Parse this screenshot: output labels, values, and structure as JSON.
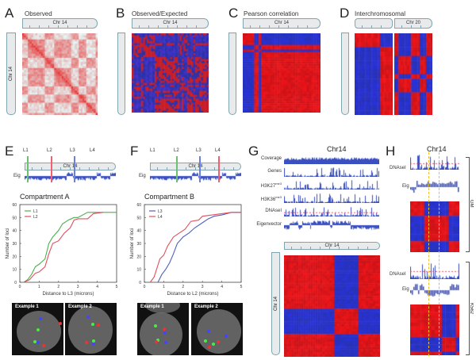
{
  "panels": {
    "A": {
      "label": "A",
      "title": "Observed",
      "chr_h": "Chr 14",
      "chr_v": "Chr 14"
    },
    "B": {
      "label": "B",
      "title": "Observed/Expected",
      "chr_h": "Chr 14"
    },
    "C": {
      "label": "C",
      "title": "Pearson correlation",
      "chr_h": "Chr 14"
    },
    "D": {
      "label": "D",
      "title": "Interchromosomal",
      "chr_h": "Chr 20"
    },
    "E": {
      "label": "E",
      "loci": [
        "L1",
        "L2",
        "L3",
        "L4"
      ],
      "chr": "Chr 14",
      "eig": "Eig",
      "title": "Compartment A",
      "example1": "Example 1",
      "example2": "Example 2"
    },
    "F": {
      "label": "F",
      "loci": [
        "L1",
        "L2",
        "L3",
        "L4"
      ],
      "chr": "Chr 14",
      "eig": "Eig",
      "title": "Compartment B",
      "example1": "Example 1",
      "example2": "Example 2"
    },
    "G": {
      "label": "G",
      "title": "Chr14",
      "tracks": [
        {
          "name": "Coverage",
          "sup": ""
        },
        {
          "name": "Genes",
          "sup": ""
        },
        {
          "name": "H3K27",
          "sup": "me3"
        },
        {
          "name": "H3K36",
          "sup": "me3"
        },
        {
          "name": "DNAseI",
          "sup": ""
        },
        {
          "name": "Eigenvector",
          "sup": ""
        }
      ],
      "chr_h": "Chr 14",
      "chr_v": "Chr 14"
    },
    "H": {
      "label": "H",
      "title": "Chr14",
      "gm": {
        "dnase": "DNAseI",
        "eig": "Eig",
        "cell": "GM"
      },
      "k562": {
        "dnase": "DNAseI",
        "eig": "Eig",
        "cell": "K562"
      }
    }
  },
  "colors": {
    "red": "#e02020",
    "blue": "#3a4fc0",
    "green": "#4caf50",
    "locus_red": "#f06070",
    "locus_blue": "#5a6fd0",
    "highlight": "#f0c020"
  },
  "chart_data": [
    {
      "type": "line",
      "panel": "E",
      "title": "Compartment A",
      "xlabel": "Distance to L3 (microns)",
      "ylabel": "Number of loci",
      "xlim": [
        0,
        5
      ],
      "ylim": [
        0,
        60
      ],
      "xticks": [
        "0",
        "1",
        "2",
        "3",
        "4",
        "5"
      ],
      "yticks": [
        "0",
        "10",
        "20",
        "30",
        "40",
        "50",
        "60"
      ],
      "legend": "top-left",
      "series": [
        {
          "name": "L1",
          "color": "#4caf50",
          "x": [
            0.2,
            0.4,
            0.6,
            0.8,
            1.0,
            1.3,
            1.5,
            1.7,
            2.0,
            2.2,
            2.5,
            2.8,
            3.0,
            3.5,
            5.0
          ],
          "y": [
            0,
            2,
            6,
            12,
            14,
            18,
            30,
            35,
            40,
            45,
            48,
            50,
            50,
            54,
            54
          ]
        },
        {
          "name": "L2",
          "color": "#e05060",
          "x": [
            0.2,
            0.5,
            0.8,
            1.0,
            1.3,
            1.5,
            1.7,
            2.0,
            2.3,
            2.6,
            2.8,
            3.0,
            3.5,
            3.8,
            4.3
          ],
          "y": [
            0,
            2,
            7,
            8,
            12,
            22,
            30,
            32,
            38,
            42,
            48,
            49,
            49,
            53,
            54
          ]
        }
      ]
    },
    {
      "type": "line",
      "panel": "F",
      "title": "Compartment B",
      "xlabel": "Distance to L2 (microns)",
      "ylabel": "Number of loci",
      "xlim": [
        0,
        5
      ],
      "ylim": [
        0,
        60
      ],
      "xticks": [
        "0",
        "1",
        "2",
        "3",
        "4",
        "5"
      ],
      "yticks": [
        "0",
        "10",
        "20",
        "30",
        "40",
        "50",
        "60"
      ],
      "legend": "top-left",
      "series": [
        {
          "name": "L3",
          "color": "#5060c0",
          "x": [
            0.7,
            0.9,
            1.1,
            1.3,
            1.5,
            1.7,
            2.0,
            2.3,
            2.6,
            3.0,
            3.3,
            3.6,
            4.0,
            4.5,
            5.0
          ],
          "y": [
            0,
            6,
            10,
            15,
            22,
            30,
            35,
            38,
            42,
            46,
            49,
            51,
            52,
            54,
            54
          ]
        },
        {
          "name": "L4",
          "color": "#e05060",
          "x": [
            0.3,
            0.5,
            0.8,
            1.0,
            1.2,
            1.5,
            1.8,
            2.1,
            2.4,
            2.8,
            3.0,
            3.5,
            4.0,
            4.5,
            5.0
          ],
          "y": [
            0,
            4,
            18,
            21,
            28,
            35,
            38,
            41,
            47,
            48,
            51,
            52,
            53,
            54,
            54
          ]
        }
      ]
    }
  ]
}
